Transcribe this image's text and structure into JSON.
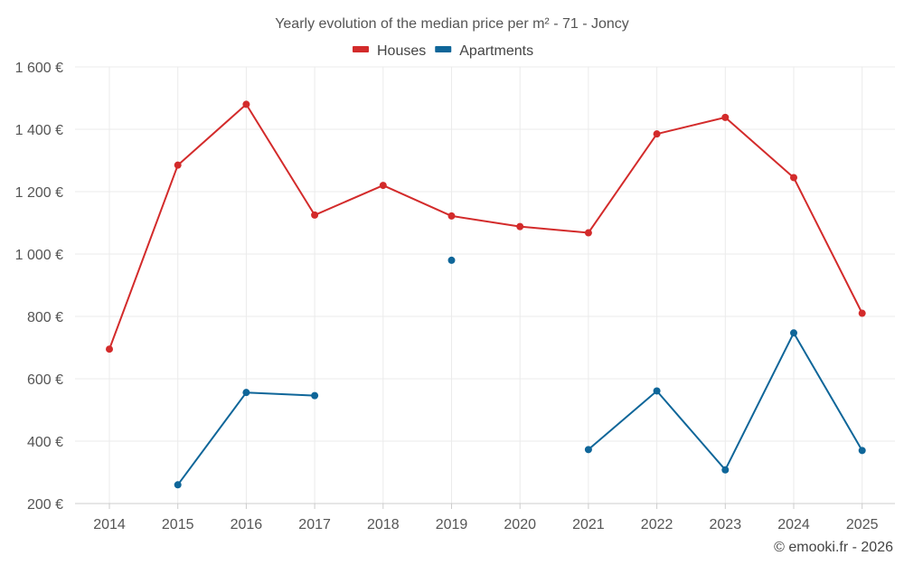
{
  "chart_data": {
    "type": "line",
    "title": "Yearly evolution of the median price per m² - 71 - Joncy",
    "categories": [
      "2014",
      "2015",
      "2016",
      "2017",
      "2018",
      "2019",
      "2020",
      "2021",
      "2022",
      "2023",
      "2024",
      "2025"
    ],
    "series": [
      {
        "name": "Houses",
        "color": "#d32b2b",
        "values": [
          695,
          1285,
          1480,
          1125,
          1220,
          1122,
          1088,
          1068,
          1385,
          1438,
          1245,
          810
        ]
      },
      {
        "name": "Apartments",
        "color": "#0f6699",
        "values": [
          null,
          260,
          556,
          546,
          null,
          980,
          null,
          373,
          561,
          308,
          747,
          370
        ]
      }
    ],
    "ylim": [
      200,
      1600
    ],
    "yticks": [
      200,
      400,
      600,
      800,
      1000,
      1200,
      1400,
      1600
    ],
    "ytick_labels": [
      "200 €",
      "400 €",
      "600 €",
      "800 €",
      "1 000 €",
      "1 200 €",
      "1 400 €",
      "1 600 €"
    ],
    "xlabel": "",
    "ylabel": "",
    "grid": true,
    "legend_position": "top-center"
  },
  "credit": "© emooki.fr - 2026"
}
